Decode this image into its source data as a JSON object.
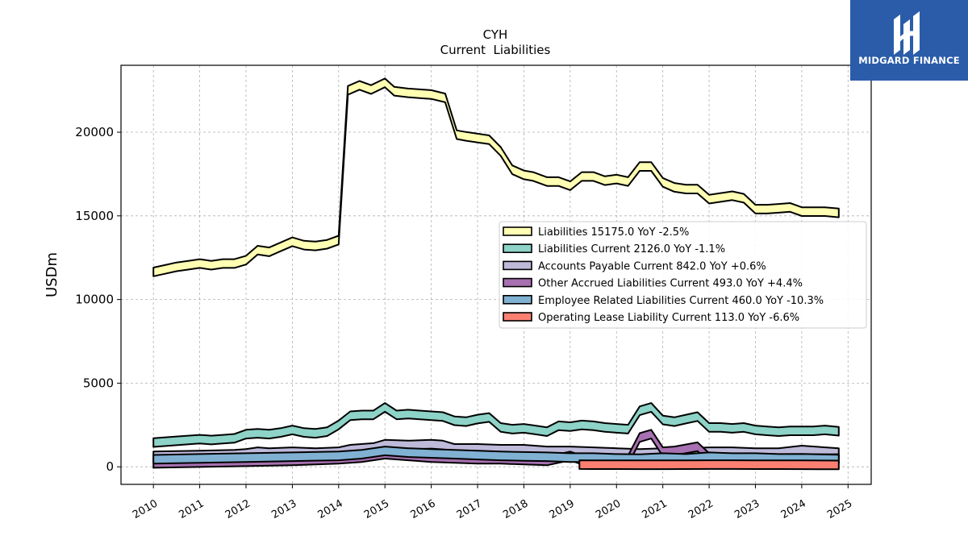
{
  "brand": {
    "name": "MIDGARD FINANCE",
    "icon": "midgard-logo-icon",
    "color": "#2a5caa"
  },
  "chart_data": {
    "type": "area",
    "title": "CYH",
    "subtitle": "Current  Liabilities",
    "xlabel": "",
    "ylabel": "USDm",
    "x_ticks": [
      "2010",
      "2011",
      "2012",
      "2013",
      "2014",
      "2015",
      "2016",
      "2017",
      "2018",
      "2019",
      "2020",
      "2021",
      "2022",
      "2023",
      "2024",
      "2025"
    ],
    "y_ticks": [
      0,
      5000,
      10000,
      15000,
      20000
    ],
    "xlim": [
      2009.3,
      2025.5
    ],
    "ylim": [
      -1050,
      24000
    ],
    "grid": true,
    "legend_position": "center-right",
    "series": [
      {
        "name": "Liabilities",
        "legend": "Liabilities  15175.0 YoY -2.5%",
        "color": "#ffffb3",
        "x": [
          2010.0,
          2010.25,
          2010.5,
          2010.75,
          2011.0,
          2011.25,
          2011.5,
          2011.75,
          2012.0,
          2012.25,
          2012.5,
          2012.75,
          2013.0,
          2013.25,
          2013.5,
          2013.75,
          2014.0,
          2014.2,
          2014.45,
          2014.7,
          2015.0,
          2015.2,
          2015.5,
          2015.75,
          2016.0,
          2016.3,
          2016.55,
          2016.75,
          2017.0,
          2017.25,
          2017.5,
          2017.75,
          2018.0,
          2018.2,
          2018.5,
          2018.75,
          2019.0,
          2019.25,
          2019.5,
          2019.75,
          2020.0,
          2020.25,
          2020.5,
          2020.75,
          2021.0,
          2021.25,
          2021.5,
          2021.75,
          2022.0,
          2022.25,
          2022.5,
          2022.75,
          2023.0,
          2023.25,
          2023.5,
          2023.75,
          2024.0,
          2024.25,
          2024.5,
          2024.8
        ],
        "values": [
          11650,
          11800,
          11950,
          12050,
          12150,
          12050,
          12150,
          12150,
          12350,
          12950,
          12850,
          13150,
          13450,
          13250,
          13200,
          13300,
          13550,
          22500,
          22800,
          22550,
          22950,
          22450,
          22350,
          22300,
          22250,
          22050,
          19850,
          19750,
          19650,
          19550,
          18850,
          17750,
          17450,
          17350,
          17050,
          17050,
          16800,
          17350,
          17350,
          17100,
          17200,
          17050,
          17950,
          17950,
          17000,
          16700,
          16600,
          16600,
          16000,
          16100,
          16200,
          16050,
          15400,
          15400,
          15450,
          15500,
          15250,
          15250,
          15250,
          15175
        ]
      },
      {
        "name": "Liabilities Current",
        "legend": "Liabilities Current  2126.0 YoY -1.1%",
        "color": "#8dd3c7",
        "x": [
          2010.0,
          2010.5,
          2011.0,
          2011.25,
          2011.5,
          2011.75,
          2012.0,
          2012.25,
          2012.5,
          2012.75,
          2013.0,
          2013.25,
          2013.5,
          2013.75,
          2014.0,
          2014.25,
          2014.5,
          2014.75,
          2015.0,
          2015.25,
          2015.5,
          2015.75,
          2016.0,
          2016.25,
          2016.5,
          2016.75,
          2017.0,
          2017.25,
          2017.5,
          2017.75,
          2018.0,
          2018.25,
          2018.5,
          2018.75,
          2019.0,
          2019.25,
          2019.5,
          2019.75,
          2020.0,
          2020.25,
          2020.5,
          2020.75,
          2021.0,
          2021.25,
          2021.5,
          2021.75,
          2022.0,
          2022.25,
          2022.5,
          2022.75,
          2023.0,
          2023.25,
          2023.5,
          2023.75,
          2024.0,
          2024.25,
          2024.5,
          2024.8
        ],
        "values": [
          1450,
          1550,
          1650,
          1600,
          1650,
          1700,
          1950,
          2000,
          1950,
          2050,
          2200,
          2050,
          2000,
          2100,
          2500,
          3050,
          3100,
          3100,
          3550,
          3100,
          3150,
          3100,
          3050,
          3000,
          2750,
          2700,
          2850,
          2950,
          2350,
          2250,
          2300,
          2200,
          2100,
          2450,
          2400,
          2500,
          2450,
          2350,
          2300,
          2250,
          3350,
          3550,
          2800,
          2700,
          2850,
          3000,
          2350,
          2350,
          2300,
          2350,
          2200,
          2150,
          2100,
          2150,
          2150,
          2150,
          2200,
          2126
        ]
      },
      {
        "name": "Accounts Payable Current",
        "legend": "Accounts Payable Current  842.0 YoY +0.6%",
        "color": "#bebada",
        "x": [
          2010.0,
          2011.0,
          2011.75,
          2012.0,
          2012.25,
          2012.5,
          2013.0,
          2013.5,
          2014.0,
          2014.25,
          2014.75,
          2015.0,
          2015.5,
          2016.0,
          2016.25,
          2016.5,
          2017.0,
          2017.5,
          2018.0,
          2018.5,
          2019.0,
          2019.5,
          2020.0,
          2020.5,
          2021.0,
          2021.5,
          2022.0,
          2022.5,
          2023.0,
          2023.5,
          2024.0,
          2024.8
        ],
        "values": [
          650,
          700,
          750,
          800,
          900,
          850,
          900,
          850,
          900,
          1050,
          1150,
          1350,
          1300,
          1350,
          1300,
          1100,
          1100,
          1050,
          1050,
          950,
          950,
          900,
          850,
          800,
          850,
          850,
          900,
          900,
          850,
          850,
          1000,
          842
        ]
      },
      {
        "name": "Other Accrued Liabilities Current",
        "legend": "Other Accrued Liabilities Current  493.0 YoY +4.4%",
        "color": "#a770b0",
        "x": [
          2010.0,
          2011.0,
          2012.0,
          2013.0,
          2014.0,
          2014.5,
          2015.0,
          2015.5,
          2016.0,
          2016.5,
          2017.0,
          2017.5,
          2018.0,
          2018.5,
          2019.0,
          2019.25,
          2020.0,
          2020.25,
          2020.5,
          2020.75,
          2021.0,
          2021.25,
          2021.75,
          2022.0,
          2022.5,
          2023.0,
          2023.5,
          2024.0,
          2024.8
        ],
        "values": [
          200,
          250,
          300,
          350,
          450,
          550,
          750,
          650,
          550,
          500,
          450,
          450,
          400,
          350,
          650,
          400,
          350,
          400,
          1750,
          1950,
          900,
          950,
          1200,
          550,
          500,
          480,
          470,
          475,
          493
        ]
      },
      {
        "name": "Employee Related Liabilities Current",
        "legend": "Employee Related Liabilities Current  460.0 YoY -10.3%",
        "color": "#80b1d3",
        "x": [
          2010.0,
          2011.0,
          2012.0,
          2013.0,
          2014.0,
          2014.5,
          2015.0,
          2015.5,
          2016.0,
          2016.5,
          2017.0,
          2017.5,
          2018.0,
          2018.5,
          2019.0,
          2019.5,
          2020.0,
          2020.5,
          2021.0,
          2021.5,
          2022.0,
          2022.5,
          2023.0,
          2023.5,
          2024.0,
          2024.8
        ],
        "values": [
          450,
          500,
          550,
          600,
          650,
          750,
          950,
          850,
          800,
          750,
          700,
          650,
          620,
          600,
          550,
          550,
          500,
          480,
          550,
          500,
          600,
          550,
          550,
          500,
          513,
          460
        ]
      },
      {
        "name": "Operating Lease Liability Current",
        "legend": "Operating Lease Liability Current  113.0 YoY -6.6%",
        "color": "#fb8072",
        "x": [
          2019.2,
          2019.5,
          2020.0,
          2020.5,
          2021.0,
          2021.5,
          2022.0,
          2022.5,
          2023.0,
          2023.5,
          2024.0,
          2024.8
        ],
        "values": [
          130,
          125,
          125,
          120,
          120,
          125,
          130,
          130,
          125,
          125,
          121,
          113
        ]
      }
    ]
  }
}
